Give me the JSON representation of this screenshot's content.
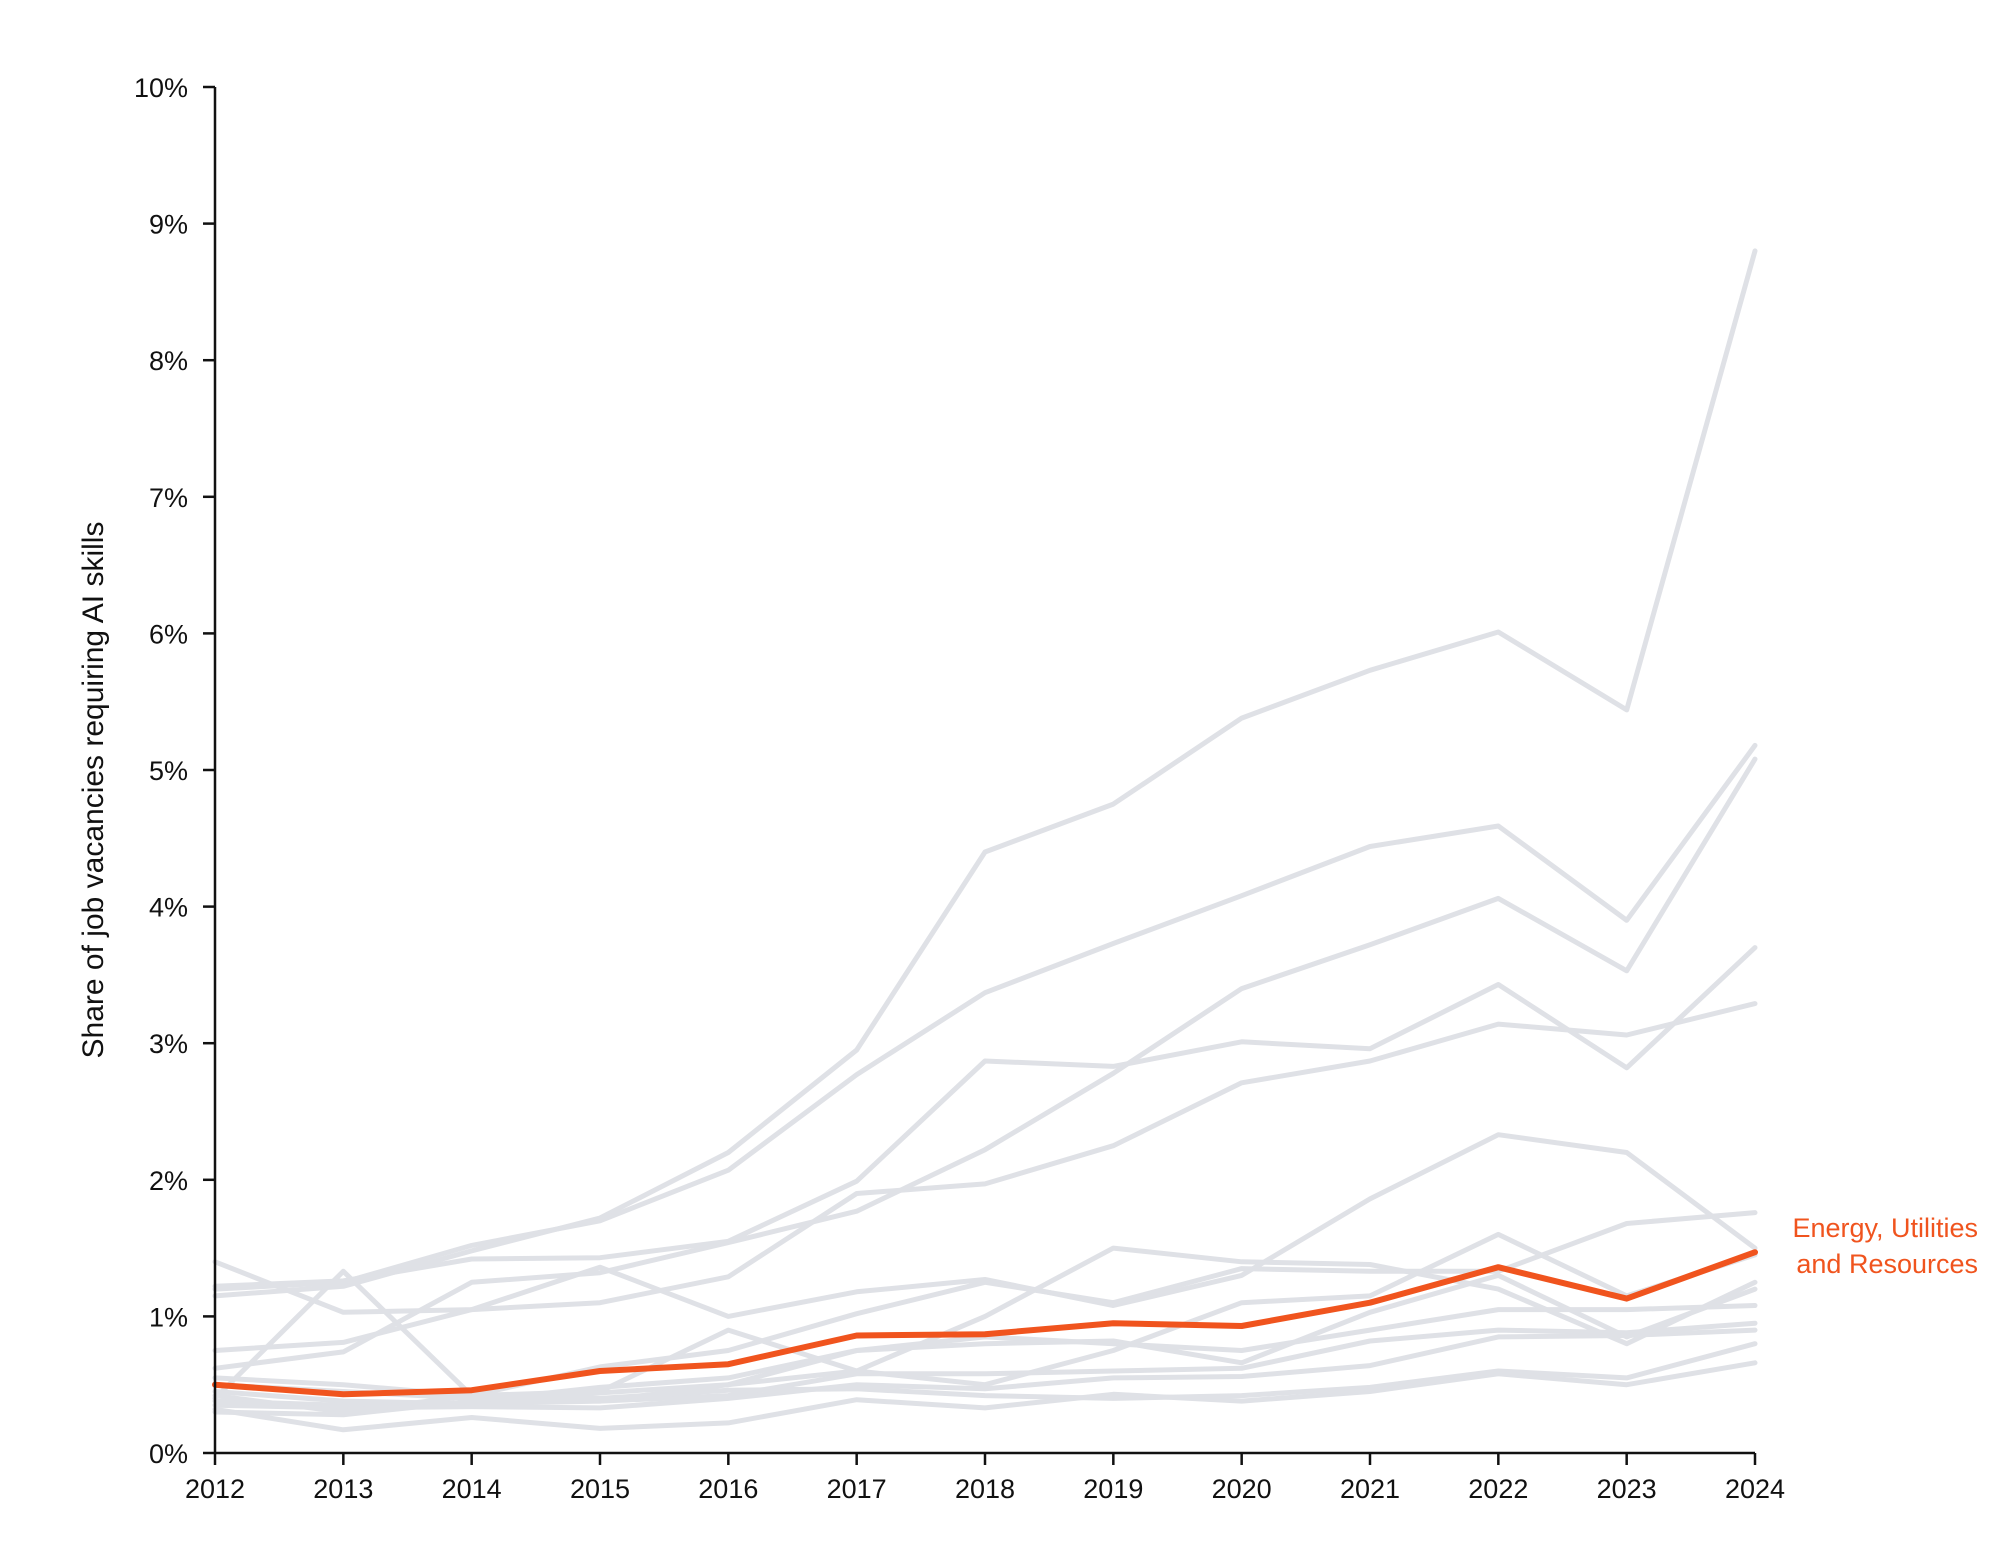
{
  "chart_data": {
    "type": "line",
    "ylabel": "Share of job vacancies requiring AI skills",
    "xlabel": "",
    "x": [
      "2012",
      "2013",
      "2014",
      "2015",
      "2016",
      "2017",
      "2018",
      "2019",
      "2020",
      "2021",
      "2022",
      "2023",
      "2024"
    ],
    "ylim": [
      0,
      10
    ],
    "y_ticks": [
      {
        "value": 0,
        "label": "0%"
      },
      {
        "value": 1,
        "label": "1%"
      },
      {
        "value": 2,
        "label": "2%"
      },
      {
        "value": 3,
        "label": "3%"
      },
      {
        "value": 4,
        "label": "4%"
      },
      {
        "value": 5,
        "label": "5%"
      },
      {
        "value": 6,
        "label": "6%"
      },
      {
        "value": 7,
        "label": "7%"
      },
      {
        "value": 8,
        "label": "8%"
      },
      {
        "value": 9,
        "label": "9%"
      },
      {
        "value": 10,
        "label": "10%"
      }
    ],
    "grid": false,
    "background_series_color": "#dfe1e6",
    "highlight_color": "#f0541e",
    "background_series": [
      {
        "values": [
          1.15,
          1.22,
          1.48,
          1.72,
          2.2,
          2.95,
          4.4,
          4.75,
          5.38,
          5.73,
          6.01,
          5.44,
          8.8
        ]
      },
      {
        "values": [
          1.2,
          1.25,
          1.52,
          1.7,
          2.07,
          2.77,
          3.37,
          3.73,
          4.08,
          4.44,
          4.59,
          3.9,
          5.18
        ]
      },
      {
        "values": [
          1.22,
          1.26,
          1.42,
          1.43,
          1.55,
          1.99,
          2.87,
          2.83,
          3.01,
          2.96,
          3.43,
          2.82,
          3.7
        ]
      },
      {
        "values": [
          0.75,
          0.81,
          1.05,
          1.1,
          1.29,
          1.9,
          1.97,
          2.25,
          2.71,
          2.87,
          3.14,
          3.06,
          3.29
        ]
      },
      {
        "values": [
          0.62,
          0.74,
          1.25,
          1.32,
          1.54,
          1.77,
          2.22,
          2.78,
          3.4,
          3.72,
          4.06,
          3.53,
          5.08
        ]
      },
      {
        "values": [
          1.4,
          1.03,
          1.05,
          1.36,
          1.0,
          1.18,
          1.27,
          1.08,
          1.3,
          1.86,
          2.33,
          2.2,
          1.5
        ]
      },
      {
        "values": [
          0.55,
          0.5,
          0.42,
          0.63,
          0.75,
          1.02,
          1.25,
          1.1,
          1.35,
          1.33,
          1.33,
          1.68,
          1.76
        ]
      },
      {
        "values": [
          0.4,
          1.33,
          0.42,
          0.45,
          0.9,
          0.6,
          0.5,
          0.75,
          1.1,
          1.15,
          1.6,
          1.15,
          1.45
        ]
      },
      {
        "values": [
          0.45,
          0.38,
          0.36,
          0.44,
          0.5,
          0.6,
          1.0,
          1.5,
          1.4,
          1.38,
          1.2,
          0.8,
          1.25
        ]
      },
      {
        "values": [
          0.38,
          0.35,
          0.36,
          0.38,
          0.5,
          0.75,
          0.8,
          0.82,
          0.66,
          1.03,
          1.3,
          0.85,
          1.2
        ]
      },
      {
        "values": [
          0.3,
          0.28,
          0.38,
          0.48,
          0.55,
          0.75,
          0.85,
          0.8,
          0.75,
          0.9,
          1.05,
          1.05,
          1.08
        ]
      },
      {
        "values": [
          0.5,
          0.45,
          0.4,
          0.38,
          0.42,
          0.58,
          0.58,
          0.6,
          0.62,
          0.82,
          0.9,
          0.88,
          0.95
        ]
      },
      {
        "values": [
          0.35,
          0.33,
          0.34,
          0.33,
          0.4,
          0.5,
          0.47,
          0.55,
          0.56,
          0.64,
          0.85,
          0.86,
          0.9
        ]
      },
      {
        "values": [
          0.42,
          0.3,
          0.42,
          0.4,
          0.46,
          0.47,
          0.42,
          0.4,
          0.42,
          0.48,
          0.6,
          0.55,
          0.8
        ]
      },
      {
        "values": [
          0.32,
          0.17,
          0.26,
          0.18,
          0.22,
          0.39,
          0.33,
          0.43,
          0.38,
          0.45,
          0.58,
          0.5,
          0.66
        ]
      }
    ],
    "highlight_series": {
      "name": "Energy, Utilities and Resources",
      "label_lines": [
        "Energy, Utilities",
        "and Resources"
      ],
      "values": [
        0.5,
        0.43,
        0.46,
        0.6,
        0.65,
        0.86,
        0.87,
        0.95,
        0.93,
        1.1,
        1.36,
        1.13,
        1.47
      ]
    }
  }
}
